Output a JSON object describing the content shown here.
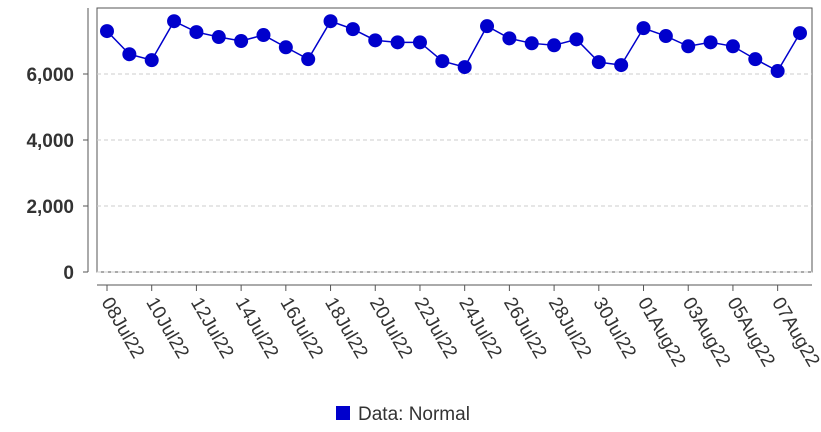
{
  "chart_data": {
    "type": "line",
    "categories": [
      "08Jul22",
      null,
      "10Jul22",
      null,
      "12Jul22",
      null,
      "14Jul22",
      null,
      "16Jul22",
      null,
      "18Jul22",
      null,
      "20Jul22",
      null,
      "22Jul22",
      null,
      "24Jul22",
      null,
      "26Jul22",
      null,
      "28Jul22",
      null,
      "30Jul22",
      null,
      "01Aug22",
      null,
      "03Aug22",
      null,
      "05Aug22",
      null,
      "07Aug22",
      null
    ],
    "series": [
      {
        "name": "Data: Normal",
        "color": "#0000cc",
        "values": [
          7300,
          6600,
          6420,
          7600,
          7270,
          7120,
          7000,
          7180,
          6810,
          6450,
          7600,
          7360,
          7020,
          6960,
          6960,
          6390,
          6210,
          7450,
          7080,
          6930,
          6870,
          7050,
          6360,
          6270,
          7390,
          7150,
          6840,
          6960,
          6840,
          6450,
          6090,
          7240
        ]
      }
    ],
    "ylim": [
      0,
      8000
    ],
    "yticks": [
      0,
      {
        "value": 2000,
        "label": "2,000"
      },
      {
        "value": 4000,
        "label": "4,000"
      },
      {
        "value": 6000,
        "label": "6,000"
      }
    ],
    "grid": true
  }
}
